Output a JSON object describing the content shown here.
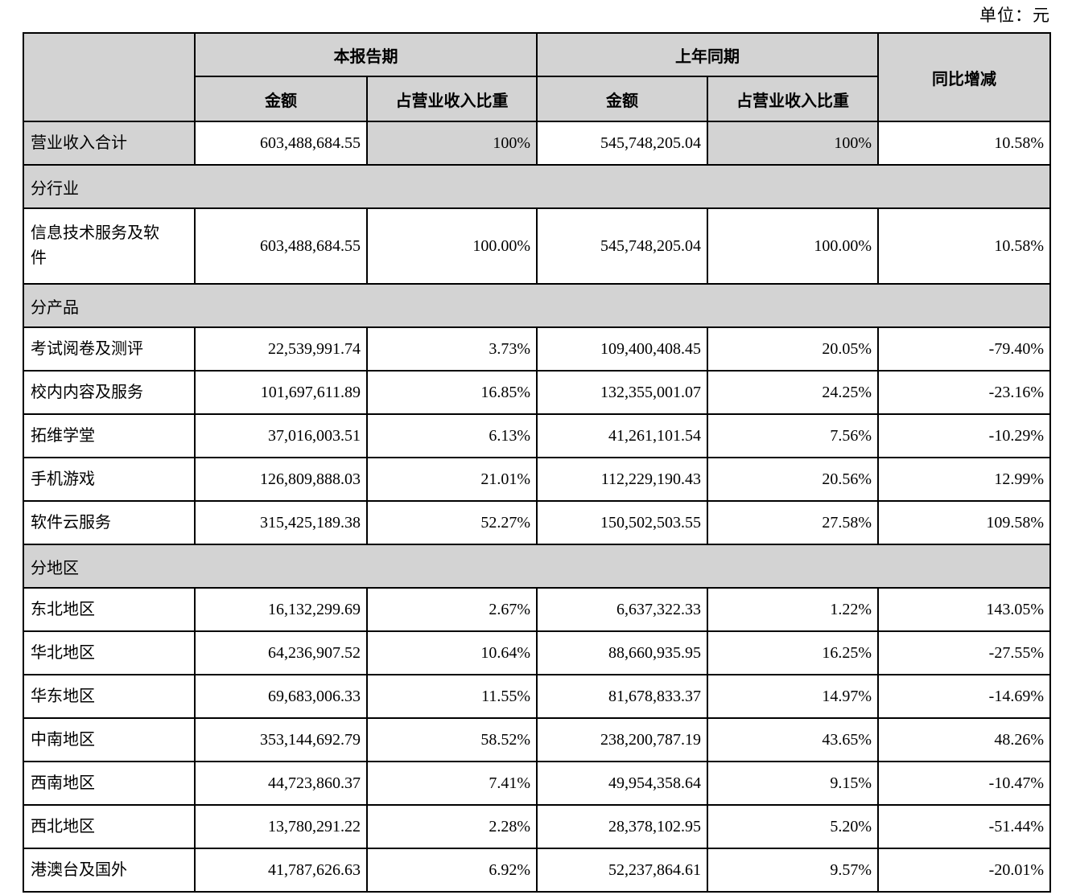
{
  "meta": {
    "unit_label": "单位：元"
  },
  "table": {
    "header": {
      "col_group_current": "本报告期",
      "col_group_prior": "上年同期",
      "col_amount_current": "金额",
      "col_ratio_current": "占营业收入比重",
      "col_amount_prior": "金额",
      "col_ratio_prior": "占营业收入比重",
      "col_yoy": "同比增减"
    },
    "rows": [
      {
        "kind": "total",
        "label": "营业收入合计",
        "amount_current": "603,488,684.55",
        "ratio_current": "100%",
        "amount_prior": "545,748,205.04",
        "ratio_prior": "100%",
        "yoy": "10.58%"
      },
      {
        "kind": "section",
        "label": "分行业"
      },
      {
        "kind": "data",
        "tall": true,
        "label": "信息技术服务及软件",
        "amount_current": "603,488,684.55",
        "ratio_current": "100.00%",
        "amount_prior": "545,748,205.04",
        "ratio_prior": "100.00%",
        "yoy": "10.58%"
      },
      {
        "kind": "section",
        "label": "分产品"
      },
      {
        "kind": "data",
        "label": "考试阅卷及测评",
        "amount_current": "22,539,991.74",
        "ratio_current": "3.73%",
        "amount_prior": "109,400,408.45",
        "ratio_prior": "20.05%",
        "yoy": "-79.40%"
      },
      {
        "kind": "data",
        "label": "校内内容及服务",
        "amount_current": "101,697,611.89",
        "ratio_current": "16.85%",
        "amount_prior": "132,355,001.07",
        "ratio_prior": "24.25%",
        "yoy": "-23.16%"
      },
      {
        "kind": "data",
        "label": "拓维学堂",
        "amount_current": "37,016,003.51",
        "ratio_current": "6.13%",
        "amount_prior": "41,261,101.54",
        "ratio_prior": "7.56%",
        "yoy": "-10.29%"
      },
      {
        "kind": "data",
        "label": "手机游戏",
        "amount_current": "126,809,888.03",
        "ratio_current": "21.01%",
        "amount_prior": "112,229,190.43",
        "ratio_prior": "20.56%",
        "yoy": "12.99%"
      },
      {
        "kind": "data",
        "label": "软件云服务",
        "amount_current": "315,425,189.38",
        "ratio_current": "52.27%",
        "amount_prior": "150,502,503.55",
        "ratio_prior": "27.58%",
        "yoy": "109.58%"
      },
      {
        "kind": "section",
        "label": "分地区"
      },
      {
        "kind": "data",
        "label": "东北地区",
        "amount_current": "16,132,299.69",
        "ratio_current": "2.67%",
        "amount_prior": "6,637,322.33",
        "ratio_prior": "1.22%",
        "yoy": "143.05%"
      },
      {
        "kind": "data",
        "label": "华北地区",
        "amount_current": "64,236,907.52",
        "ratio_current": "10.64%",
        "amount_prior": "88,660,935.95",
        "ratio_prior": "16.25%",
        "yoy": "-27.55%"
      },
      {
        "kind": "data",
        "label": "华东地区",
        "amount_current": "69,683,006.33",
        "ratio_current": "11.55%",
        "amount_prior": "81,678,833.37",
        "ratio_prior": "14.97%",
        "yoy": "-14.69%"
      },
      {
        "kind": "data",
        "label": "中南地区",
        "amount_current": "353,144,692.79",
        "ratio_current": "58.52%",
        "amount_prior": "238,200,787.19",
        "ratio_prior": "43.65%",
        "yoy": "48.26%"
      },
      {
        "kind": "data",
        "label": "西南地区",
        "amount_current": "44,723,860.37",
        "ratio_current": "7.41%",
        "amount_prior": "49,954,358.64",
        "ratio_prior": "9.15%",
        "yoy": "-10.47%"
      },
      {
        "kind": "data",
        "label": "西北地区",
        "amount_current": "13,780,291.22",
        "ratio_current": "2.28%",
        "amount_prior": "28,378,102.95",
        "ratio_prior": "5.20%",
        "yoy": "-51.44%"
      },
      {
        "kind": "data",
        "label": "港澳台及国外",
        "amount_current": "41,787,626.63",
        "ratio_current": "6.92%",
        "amount_prior": "52,237,864.61",
        "ratio_prior": "9.57%",
        "yoy": "-20.01%"
      }
    ],
    "colors": {
      "shading": "#d3d3d3",
      "border": "#000000"
    }
  }
}
